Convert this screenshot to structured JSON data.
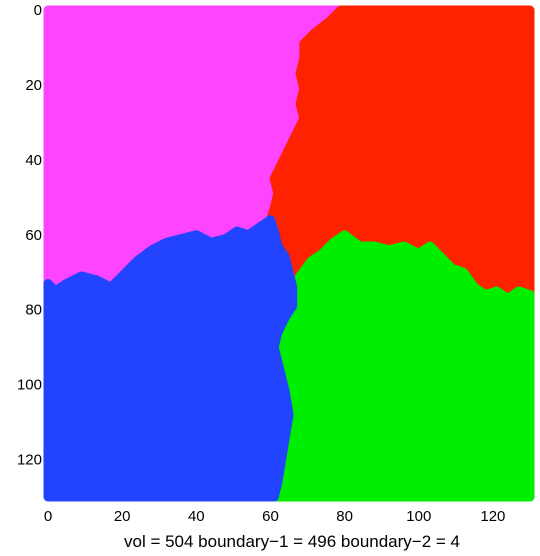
{
  "chart_data": {
    "type": "heatmap",
    "title": "",
    "xlabel": "vol = 504  boundary−1 = 496 boundary−2 = 4",
    "ylabel": "",
    "xlim": [
      0,
      130
    ],
    "ylim": [
      0,
      130
    ],
    "y_inverted": true,
    "x_ticks": [
      "0",
      "20",
      "40",
      "60",
      "80",
      "100",
      "120"
    ],
    "y_ticks": [
      "0",
      "20",
      "40",
      "60",
      "80",
      "100",
      "120"
    ],
    "grid": false,
    "regions": [
      {
        "color": "#ff44ff",
        "polygon": [
          [
            0,
            0
          ],
          [
            79,
            0
          ],
          [
            76,
            3
          ],
          [
            72,
            6
          ],
          [
            69,
            9
          ],
          [
            69,
            13
          ],
          [
            68,
            17
          ],
          [
            69,
            21
          ],
          [
            68,
            25
          ],
          [
            69,
            29
          ],
          [
            67,
            33
          ],
          [
            65,
            37
          ],
          [
            63,
            41
          ],
          [
            61,
            45
          ],
          [
            62,
            49
          ],
          [
            61,
            53
          ],
          [
            60,
            56
          ],
          [
            57,
            58
          ],
          [
            54,
            60
          ],
          [
            51,
            59
          ],
          [
            48,
            61
          ],
          [
            44,
            62
          ],
          [
            40,
            60
          ],
          [
            36,
            61
          ],
          [
            32,
            62
          ],
          [
            28,
            64
          ],
          [
            24,
            67
          ],
          [
            20,
            71
          ],
          [
            17,
            74
          ],
          [
            13,
            72
          ],
          [
            9,
            71
          ],
          [
            5,
            73
          ],
          [
            2,
            75
          ],
          [
            0,
            73
          ]
        ]
      },
      {
        "color": "#ff2200",
        "polygon": [
          [
            79,
            0
          ],
          [
            130,
            0
          ],
          [
            130,
            76
          ],
          [
            127,
            75
          ],
          [
            124,
            77
          ],
          [
            121,
            75
          ],
          [
            118,
            76
          ],
          [
            115,
            74
          ],
          [
            112,
            70
          ],
          [
            109,
            69
          ],
          [
            106,
            66
          ],
          [
            103,
            63
          ],
          [
            100,
            65
          ],
          [
            96,
            63
          ],
          [
            92,
            64
          ],
          [
            88,
            63
          ],
          [
            84,
            63
          ],
          [
            80,
            60
          ],
          [
            77,
            62
          ],
          [
            74,
            65
          ],
          [
            71,
            67
          ],
          [
            68,
            71
          ],
          [
            66,
            74
          ],
          [
            65,
            70
          ],
          [
            64,
            66
          ],
          [
            62,
            63
          ],
          [
            61,
            59
          ],
          [
            60,
            56
          ],
          [
            61,
            53
          ],
          [
            62,
            49
          ],
          [
            61,
            45
          ],
          [
            63,
            41
          ],
          [
            65,
            37
          ],
          [
            67,
            33
          ],
          [
            69,
            29
          ],
          [
            68,
            25
          ],
          [
            69,
            21
          ],
          [
            68,
            17
          ],
          [
            69,
            13
          ],
          [
            69,
            9
          ],
          [
            72,
            6
          ],
          [
            76,
            3
          ]
        ]
      },
      {
        "color": "#00ee00",
        "polygon": [
          [
            66,
            74
          ],
          [
            68,
            71
          ],
          [
            71,
            67
          ],
          [
            74,
            65
          ],
          [
            77,
            62
          ],
          [
            80,
            60
          ],
          [
            84,
            63
          ],
          [
            88,
            63
          ],
          [
            92,
            64
          ],
          [
            96,
            63
          ],
          [
            100,
            65
          ],
          [
            103,
            63
          ],
          [
            106,
            66
          ],
          [
            109,
            69
          ],
          [
            112,
            70
          ],
          [
            115,
            74
          ],
          [
            118,
            76
          ],
          [
            121,
            75
          ],
          [
            124,
            77
          ],
          [
            127,
            75
          ],
          [
            130,
            76
          ],
          [
            130,
            130
          ],
          [
            61,
            130
          ],
          [
            62,
            126
          ],
          [
            63,
            120
          ],
          [
            64,
            114
          ],
          [
            65,
            108
          ],
          [
            64,
            102
          ],
          [
            63,
            98
          ],
          [
            62,
            94
          ],
          [
            61,
            90
          ],
          [
            62,
            86
          ],
          [
            64,
            82
          ],
          [
            66,
            79
          ]
        ]
      },
      {
        "color": "#2244ff",
        "polygon": [
          [
            0,
            73
          ],
          [
            2,
            75
          ],
          [
            5,
            73
          ],
          [
            9,
            71
          ],
          [
            13,
            72
          ],
          [
            17,
            74
          ],
          [
            20,
            71
          ],
          [
            24,
            67
          ],
          [
            28,
            64
          ],
          [
            32,
            62
          ],
          [
            36,
            61
          ],
          [
            40,
            60
          ],
          [
            44,
            62
          ],
          [
            48,
            61
          ],
          [
            51,
            59
          ],
          [
            54,
            60
          ],
          [
            57,
            58
          ],
          [
            60,
            56
          ],
          [
            61,
            59
          ],
          [
            62,
            63
          ],
          [
            64,
            66
          ],
          [
            65,
            70
          ],
          [
            66,
            74
          ],
          [
            66,
            79
          ],
          [
            64,
            82
          ],
          [
            62,
            86
          ],
          [
            61,
            90
          ],
          [
            62,
            94
          ],
          [
            63,
            98
          ],
          [
            64,
            102
          ],
          [
            65,
            108
          ],
          [
            64,
            114
          ],
          [
            63,
            120
          ],
          [
            62,
            126
          ],
          [
            61,
            130
          ],
          [
            0,
            130
          ]
        ]
      }
    ]
  }
}
